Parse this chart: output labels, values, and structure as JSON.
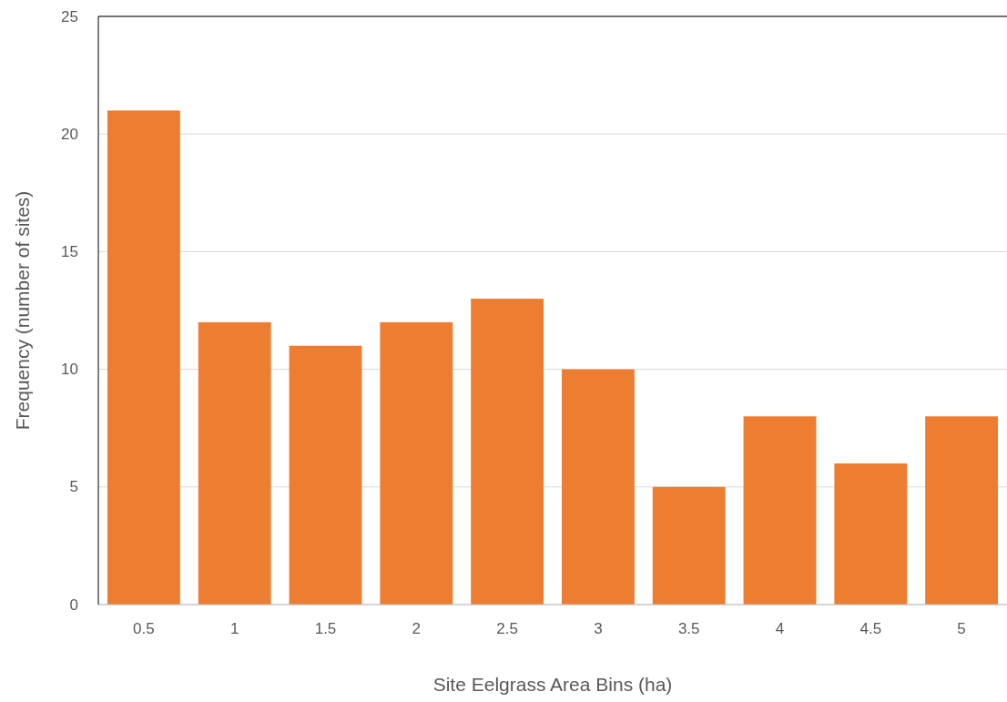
{
  "chart_data": {
    "type": "bar",
    "xlabel": "Site Eelgrass Area Bins (ha)",
    "ylabel": "Frequency (number of sites)",
    "categories": [
      "0.5",
      "1",
      "1.5",
      "2",
      "2.5",
      "3",
      "3.5",
      "4",
      "4.5",
      "5"
    ],
    "values": [
      21,
      12,
      11,
      12,
      13,
      10,
      5,
      8,
      6,
      8
    ],
    "color": "#ed7d31",
    "ylim": [
      0,
      25
    ],
    "yticks": [
      0,
      5,
      10,
      15,
      20,
      25
    ],
    "grid": "y"
  }
}
